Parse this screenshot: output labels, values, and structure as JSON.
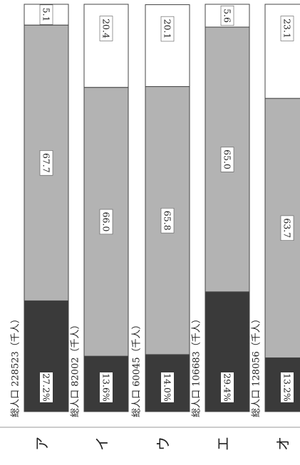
{
  "chart_data": {
    "type": "bar",
    "orientation": "horizontal-stacked-rotated",
    "stacking": "percent",
    "colors": {
      "young": "#3a3a3a",
      "working": "#b3b3b3",
      "elderly": "#ffffff",
      "stroke": "#444444"
    },
    "countries": [
      {
        "label": "ア",
        "total_text": "総人口 228523（千人）",
        "total": 228523,
        "values": [
          27.2,
          67.7,
          5.1
        ],
        "value_labels": [
          "27.2%",
          "67.7",
          "5.1"
        ]
      },
      {
        "label": "イ",
        "total_text": "総人口 82002（千人）",
        "total": 82002,
        "values": [
          13.6,
          66.0,
          20.4
        ],
        "value_labels": [
          "13.6%",
          "66.0",
          "20.4"
        ]
      },
      {
        "label": "ウ",
        "total_text": "総人口 60045（千人）",
        "total": 60045,
        "values": [
          14.0,
          65.8,
          20.1
        ],
        "value_labels": [
          "14.0%",
          "65.8",
          "20.1"
        ]
      },
      {
        "label": "エ",
        "total_text": "総人口 106683（千人）",
        "total": 106683,
        "values": [
          29.4,
          65.0,
          5.6
        ],
        "value_labels": [
          "29.4%",
          "65.0",
          "5.6"
        ]
      },
      {
        "label": "オ",
        "total_text": "総人口 128056（千人）",
        "total": 128056,
        "values": [
          13.2,
          63.7,
          23.1
        ],
        "value_labels": [
          "13.2%",
          "63.7",
          "23.1"
        ]
      }
    ]
  }
}
